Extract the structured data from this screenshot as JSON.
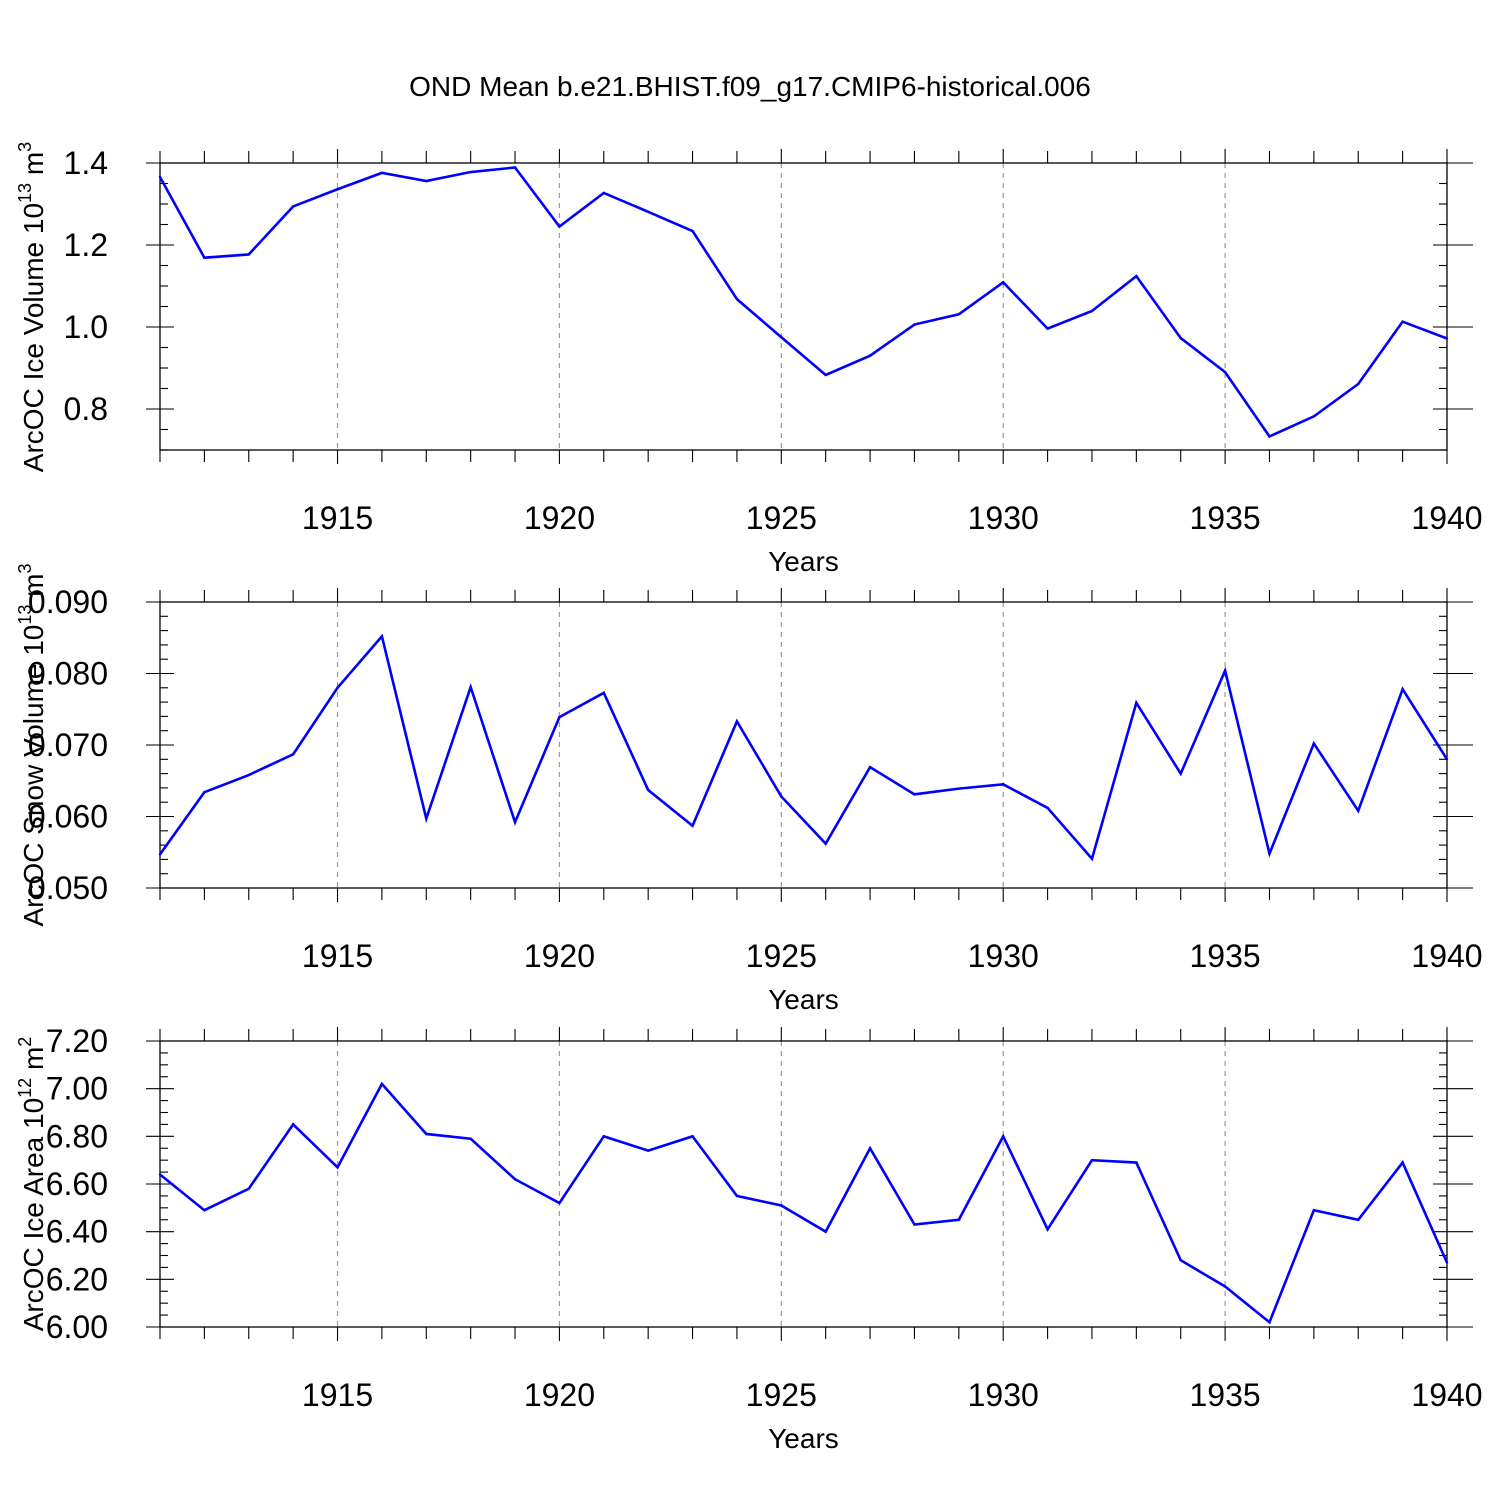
{
  "title": "OND Mean b.e21.BHIST.f09_g17.CMIP6-historical.006",
  "colors": {
    "series": "#0000ff",
    "frame": "#000000",
    "grid": "#9a9a9a"
  },
  "chart_data": [
    {
      "type": "line",
      "title": "",
      "xlabel": "Years",
      "ylabel": "ArcOC Ice Volume 10",
      "ylabel_exponent": "13",
      "ylabel_unit": " m",
      "ylabel_unit_exponent": "3",
      "xlim": [
        1911,
        1940
      ],
      "ylim": [
        0.7,
        1.4
      ],
      "xticks": [
        1915,
        1920,
        1925,
        1930,
        1935,
        1940
      ],
      "xtick_labels": [
        "1915",
        "1920",
        "1925",
        "1930",
        "1935",
        "1940"
      ],
      "yticks": [
        0.8,
        1.0,
        1.2,
        1.4
      ],
      "ytick_labels": [
        "0.8",
        "1.0",
        "1.2",
        "1.4"
      ],
      "yminor_step": 0.05,
      "grid": "vertical dashed at major x ticks",
      "x": [
        1911,
        1912,
        1913,
        1914,
        1915,
        1916,
        1917,
        1918,
        1919,
        1920,
        1921,
        1922,
        1923,
        1924,
        1925,
        1926,
        1927,
        1928,
        1929,
        1930,
        1931,
        1932,
        1933,
        1934,
        1935,
        1936,
        1937,
        1938,
        1939,
        1940
      ],
      "series": [
        {
          "values": [
            1.366,
            1.169,
            1.177,
            1.294,
            1.336,
            1.376,
            1.356,
            1.378,
            1.389,
            1.245,
            1.327,
            1.281,
            1.234,
            1.068,
            0.975,
            0.883,
            0.93,
            1.006,
            1.031,
            1.109,
            0.996,
            1.039,
            1.124,
            0.973,
            0.89,
            0.733,
            0.782,
            0.861,
            1.013,
            0.972
          ]
        }
      ]
    },
    {
      "type": "line",
      "title": "",
      "xlabel": "Years",
      "ylabel": "ArcOC Snow Volume 10",
      "ylabel_exponent": "13",
      "ylabel_unit": " m",
      "ylabel_unit_exponent": "3",
      "xlim": [
        1911,
        1940
      ],
      "ylim": [
        0.05,
        0.09
      ],
      "xticks": [
        1915,
        1920,
        1925,
        1930,
        1935,
        1940
      ],
      "xtick_labels": [
        "1915",
        "1920",
        "1925",
        "1930",
        "1935",
        "1940"
      ],
      "yticks": [
        0.05,
        0.06,
        0.07,
        0.08,
        0.09
      ],
      "ytick_labels": [
        "0.050",
        "0.060",
        "0.070",
        "0.080",
        "0.090"
      ],
      "yminor_step": 0.002,
      "grid": "vertical dashed at major x ticks",
      "x": [
        1911,
        1912,
        1913,
        1914,
        1915,
        1916,
        1917,
        1918,
        1919,
        1920,
        1921,
        1922,
        1923,
        1924,
        1925,
        1926,
        1927,
        1928,
        1929,
        1930,
        1931,
        1932,
        1933,
        1934,
        1935,
        1936,
        1937,
        1938,
        1939,
        1940
      ],
      "series": [
        {
          "values": [
            0.0547,
            0.0634,
            0.0658,
            0.0687,
            0.078,
            0.0852,
            0.0597,
            0.0781,
            0.0592,
            0.0739,
            0.0773,
            0.0637,
            0.0587,
            0.0733,
            0.0628,
            0.0562,
            0.0669,
            0.0631,
            0.0639,
            0.0645,
            0.0612,
            0.0541,
            0.0759,
            0.066,
            0.0804,
            0.0548,
            0.0702,
            0.0608,
            0.0778,
            0.068
          ]
        }
      ]
    },
    {
      "type": "line",
      "title": "",
      "xlabel": "Years",
      "ylabel": "ArcOC Ice Area 10",
      "ylabel_exponent": "12",
      "ylabel_unit": " m",
      "ylabel_unit_exponent": "2",
      "xlim": [
        1911,
        1940
      ],
      "ylim": [
        6.0,
        7.2
      ],
      "xticks": [
        1915,
        1920,
        1925,
        1930,
        1935,
        1940
      ],
      "xtick_labels": [
        "1915",
        "1920",
        "1925",
        "1930",
        "1935",
        "1940"
      ],
      "yticks": [
        6.0,
        6.2,
        6.4,
        6.6,
        6.8,
        7.0,
        7.2
      ],
      "ytick_labels": [
        "6.00",
        "6.20",
        "6.40",
        "6.60",
        "6.80",
        "7.00",
        "7.20"
      ],
      "yminor_step": 0.05,
      "grid": "vertical dashed at major x ticks",
      "x": [
        1911,
        1912,
        1913,
        1914,
        1915,
        1916,
        1917,
        1918,
        1919,
        1920,
        1921,
        1922,
        1923,
        1924,
        1925,
        1926,
        1927,
        1928,
        1929,
        1930,
        1931,
        1932,
        1933,
        1934,
        1935,
        1936,
        1937,
        1938,
        1939,
        1940
      ],
      "series": [
        {
          "values": [
            6.64,
            6.49,
            6.58,
            6.85,
            6.67,
            7.02,
            6.81,
            6.79,
            6.62,
            6.52,
            6.8,
            6.74,
            6.8,
            6.55,
            6.51,
            6.4,
            6.75,
            6.43,
            6.45,
            6.8,
            6.41,
            6.7,
            6.69,
            6.28,
            6.17,
            6.02,
            6.49,
            6.45,
            6.69,
            6.27
          ]
        }
      ]
    }
  ]
}
